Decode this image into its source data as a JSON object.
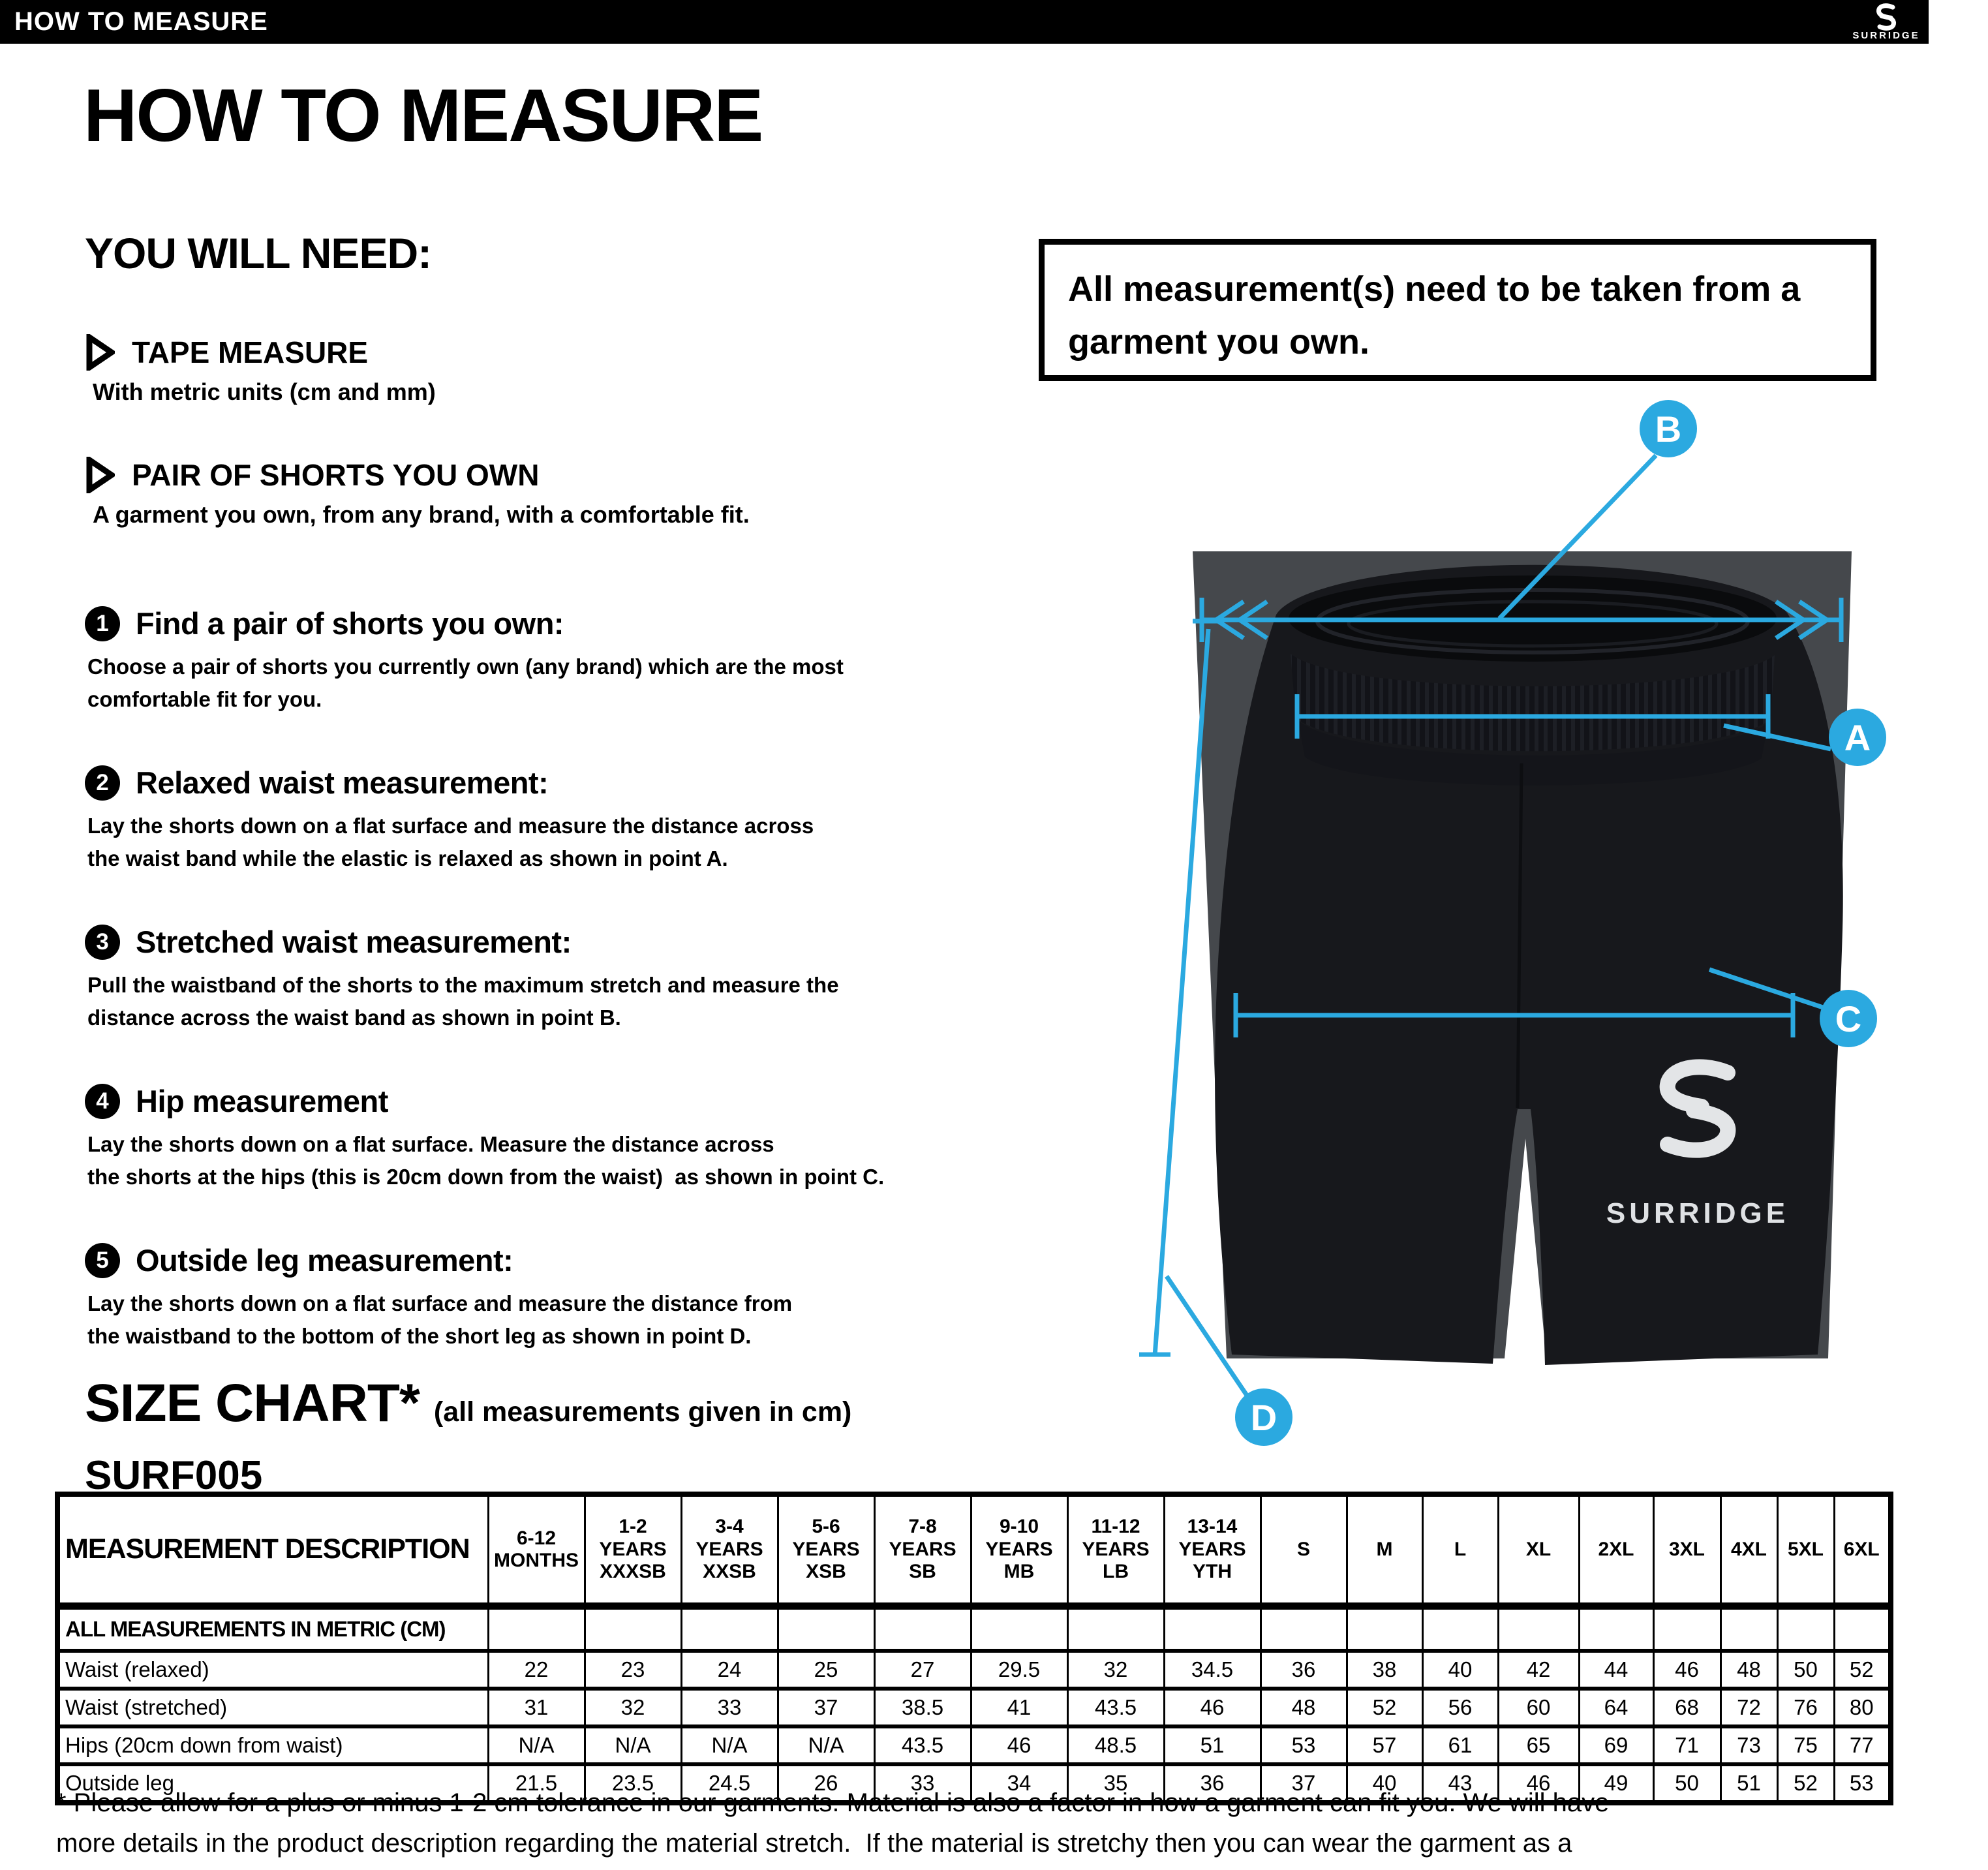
{
  "header": {
    "bar_title": "HOW TO MEASURE",
    "brand": "SURRIDGE"
  },
  "intro": {
    "title": "HOW TO MEASURE",
    "you_will_need": "YOU WILL NEED:",
    "needs": [
      {
        "title": "TAPE MEASURE",
        "desc": "With metric units (cm and mm)"
      },
      {
        "title": "PAIR OF SHORTS YOU OWN",
        "desc": "A garment you own, from any brand, with a comfortable fit."
      }
    ],
    "note": "All measurement(s) need to be taken from a garment you own."
  },
  "steps": [
    {
      "num": "1",
      "title": "Find a pair of shorts you own:",
      "body": "Choose a pair of shorts you currently own (any brand) which are the most\ncomfortable fit for you."
    },
    {
      "num": "2",
      "title": "Relaxed waist measurement:",
      "body": "Lay the shorts down on a flat surface and measure the distance across\nthe waist band while the elastic is relaxed as shown in point A."
    },
    {
      "num": "3",
      "title": "Stretched waist measurement:",
      "body": "Pull the waistband of the shorts to the maximum stretch and measure the\ndistance across the waist band as shown in point B."
    },
    {
      "num": "4",
      "title": "Hip measurement",
      "body": "Lay the shorts down on a flat surface. Measure the distance across\nthe shorts at the hips (this is 20cm down from the waist)  as shown in point C."
    },
    {
      "num": "5",
      "title": "Outside leg measurement:",
      "body": "Lay the shorts down on a flat surface and measure the distance from\nthe waistband to the bottom of the short leg as shown in point D."
    }
  ],
  "diagram": {
    "labels": {
      "a": "A",
      "b": "B",
      "c": "C",
      "d": "D"
    },
    "shorts_brand": "SURRIDGE"
  },
  "colors": {
    "accent": "#2BA9E0",
    "shorts_black": "#17181c",
    "backdrop_gray": "#45484c"
  },
  "size_chart": {
    "heading": "SIZE CHART*",
    "subheading": "(all measurements given in cm)",
    "product_code": "SURF005",
    "desc_header": "MEASUREMENT DESCRIPTION",
    "metric_note": "ALL MEASUREMENTS IN METRIC (CM)",
    "columns": [
      "6-12\nMONTHS",
      "1-2\nYEARS\nXXXSB",
      "3-4\nYEARS\nXXSB",
      "5-6\nYEARS\nXSB",
      "7-8\nYEARS\nSB",
      "9-10\nYEARS\nMB",
      "11-12\nYEARS\nLB",
      "13-14\nYEARS\nYTH",
      "S",
      "M",
      "L",
      "XL",
      "2XL",
      "3XL",
      "4XL",
      "5XL",
      "6XL"
    ],
    "rows": [
      {
        "label": "Waist (relaxed)",
        "values": [
          "22",
          "23",
          "24",
          "25",
          "27",
          "29.5",
          "32",
          "34.5",
          "36",
          "38",
          "40",
          "42",
          "44",
          "46",
          "48",
          "50",
          "52"
        ]
      },
      {
        "label": "Waist (stretched)",
        "values": [
          "31",
          "32",
          "33",
          "37",
          "38.5",
          "41",
          "43.5",
          "46",
          "48",
          "52",
          "56",
          "60",
          "64",
          "68",
          "72",
          "76",
          "80"
        ]
      },
      {
        "label": "Hips (20cm down from waist)",
        "values": [
          "N/A",
          "N/A",
          "N/A",
          "N/A",
          "43.5",
          "46",
          "48.5",
          "51",
          "53",
          "57",
          "61",
          "65",
          "69",
          "71",
          "73",
          "75",
          "77"
        ]
      },
      {
        "label": "Outside leg",
        "values": [
          "21.5",
          "23.5",
          "24.5",
          "26",
          "33",
          "34",
          "35",
          "36",
          "37",
          "40",
          "43",
          "46",
          "49",
          "50",
          "51",
          "52",
          "53"
        ]
      }
    ]
  },
  "footnote": "* Please allow for a plus or minus 1-2 cm tolerance in our garments. Material is also a factor in how a garment can fit you. We will have\nmore details in the product description regarding the material stretch.  If the material is stretchy then you can wear the garment as a\ntighter fit as the material will stretch.  Please be aware that the above measurements are of the garment and not of your body."
}
